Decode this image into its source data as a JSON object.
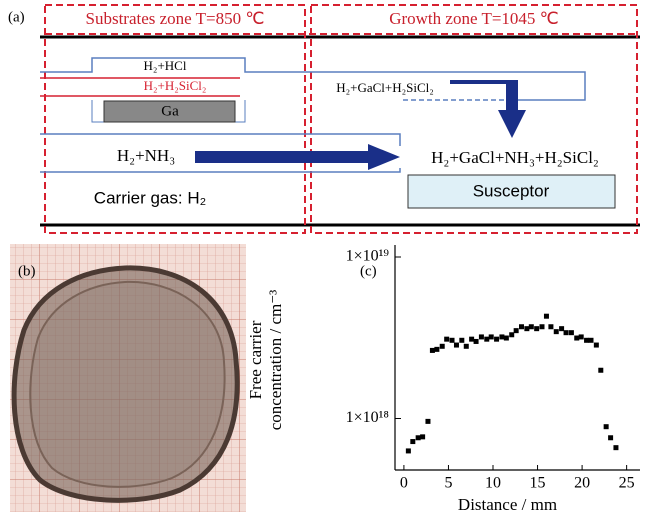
{
  "panel_labels": {
    "a": "(a)",
    "b": "(b)",
    "c": "(c)"
  },
  "diagram": {
    "zones": [
      "Substrates zone T=850 ℃",
      "Growth zone T=1045 ℃"
    ],
    "labels": {
      "hcl": "H₂+HCl",
      "sicl": "H₂+H₂SiCl₂",
      "ga": "Ga",
      "gacl": "H₂+GaCl+H₂SiCl₂",
      "nh3": "H₂+NH₃",
      "mix": "H₂+GaCl+NH₃+H₂SiCl₂",
      "carrier": "Carrier gas: H₂",
      "susceptor": "Susceptor"
    }
  },
  "chart_data": {
    "type": "scatter",
    "x_label": "Distance / mm",
    "y_label": [
      "Free carrier",
      "concentration / cm⁻³"
    ],
    "color": "#000000",
    "log_y": true,
    "xlim": [
      -1,
      26.5
    ],
    "ylim": [
      4.8e+17,
      1e+19
    ],
    "xticks": [
      0,
      5,
      10,
      15,
      20,
      25
    ],
    "yticks": [
      {
        "value": 1e+18,
        "label": "1×10¹⁸"
      },
      {
        "value": 1e+19,
        "label": "1×10¹⁹"
      }
    ],
    "x": [
      0.5,
      1.0,
      1.6,
      2.1,
      2.7,
      3.2,
      3.7,
      4.3,
      4.8,
      5.4,
      5.9,
      6.5,
      7.0,
      7.6,
      8.1,
      8.7,
      9.3,
      9.8,
      10.4,
      11.0,
      11.5,
      12.1,
      12.6,
      13.2,
      13.8,
      14.3,
      14.9,
      15.5,
      16.0,
      16.5,
      17.1,
      17.7,
      18.2,
      18.8,
      19.4,
      19.9,
      20.5,
      21.0,
      21.6,
      22.1,
      22.7,
      23.2,
      23.8
    ],
    "values": [
      6.3e+17,
      7.2e+17,
      7.6e+17,
      7.7e+17,
      9.6e+17,
      2.64e+18,
      2.68e+18,
      2.8e+18,
      3.1e+18,
      3.05e+18,
      2.85e+18,
      3.05e+18,
      2.8e+18,
      3.1e+18,
      3e+18,
      3.2e+18,
      3.1e+18,
      3.2e+18,
      3.1e+18,
      3.2e+18,
      3.15e+18,
      3.3e+18,
      3.5e+18,
      3.7e+18,
      3.6e+18,
      3.7e+18,
      3.6e+18,
      3.7e+18,
      4.3e+18,
      3.7e+18,
      3.45e+18,
      3.6e+18,
      3.4e+18,
      3.4e+18,
      3.15e+18,
      3.2e+18,
      3.05e+18,
      3.05e+18,
      2.85e+18,
      1.99e+18,
      8.9e+17,
      7.6e+17,
      6.6e+17
    ]
  }
}
